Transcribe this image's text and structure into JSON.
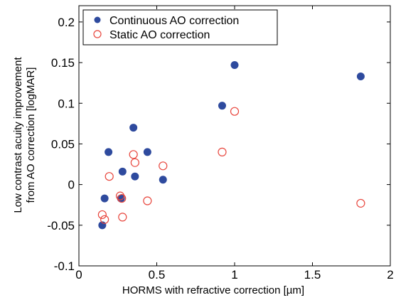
{
  "chart_data": {
    "type": "scatter",
    "title": "",
    "xlabel": "HORMS with refractive correction [µm]",
    "ylabel_lines": [
      "Low contrast acuity improvement",
      "from AO correction [logMAR]"
    ],
    "xlim": [
      0,
      2
    ],
    "ylim": [
      -0.1,
      0.22
    ],
    "x_ticks": [
      0,
      0.5,
      1,
      1.5,
      2
    ],
    "x_tick_labels": [
      "0",
      "0.5",
      "1",
      "1.5",
      "2"
    ],
    "y_ticks": [
      -0.1,
      -0.05,
      0,
      0.05,
      0.1,
      0.15,
      0.2
    ],
    "y_tick_labels": [
      "-0.1",
      "-0.05",
      "0",
      "0.05",
      "0.1",
      "0.15",
      "0.2"
    ],
    "grid": false,
    "legend_position": "top-left",
    "series": [
      {
        "name": "Continuous AO correction",
        "marker": "filled-circle",
        "color": "#2e4a9e",
        "x": [
          0.15,
          0.165,
          0.19,
          0.27,
          0.28,
          0.35,
          0.36,
          0.44,
          0.54,
          0.92,
          1.0,
          1.81
        ],
        "y": [
          -0.05,
          -0.017,
          0.04,
          -0.017,
          0.016,
          0.07,
          0.01,
          0.04,
          0.006,
          0.097,
          0.147,
          0.133
        ]
      },
      {
        "name": "Static AO correction",
        "marker": "open-circle",
        "color": "#e8453c",
        "x": [
          0.15,
          0.165,
          0.195,
          0.265,
          0.275,
          0.28,
          0.35,
          0.36,
          0.44,
          0.54,
          0.92,
          1.0,
          1.81
        ],
        "y": [
          -0.037,
          -0.043,
          0.01,
          -0.014,
          -0.017,
          -0.04,
          0.037,
          0.027,
          -0.02,
          0.023,
          0.04,
          0.09,
          -0.023
        ]
      }
    ]
  }
}
